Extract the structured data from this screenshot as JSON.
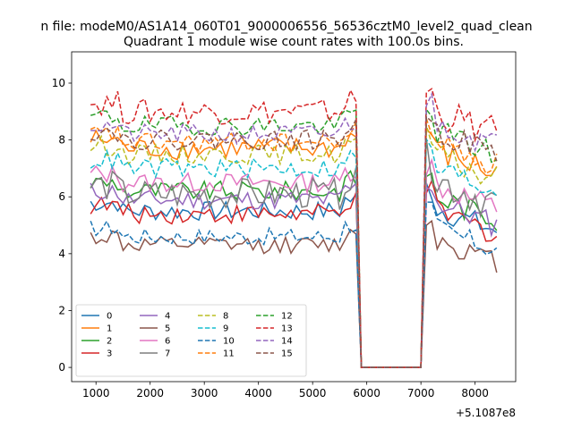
{
  "figure": {
    "suptitle": "n file: modeM0/AS1A14_060T01_9000006556_56536cztM0_level2_quad_clean",
    "background": "#ffffff"
  },
  "chart_data": {
    "type": "line",
    "title": "Quadrant 1 module wise count rates with 100.0s bins.",
    "xlabel": "",
    "ylabel": "",
    "x_offset_label": "+5.1087e8",
    "xlim": [
      550,
      8750
    ],
    "ylim": [
      -0.5,
      11.1
    ],
    "x_ticks": [
      1000,
      2000,
      3000,
      4000,
      5000,
      6000,
      7000,
      8000
    ],
    "x_tick_labels": [
      "1000",
      "2000",
      "3000",
      "4000",
      "5000",
      "6000",
      "7000",
      "8000"
    ],
    "y_ticks": [
      0,
      2,
      4,
      6,
      8,
      10
    ],
    "y_tick_labels": [
      "0",
      "2",
      "4",
      "6",
      "8",
      "10"
    ],
    "grid": false,
    "legend_placement": "lower-left",
    "legend_columns": 4,
    "bin_seconds": 100,
    "x": [
      900,
      1000,
      1100,
      1200,
      1300,
      1400,
      1500,
      1600,
      1700,
      1800,
      1900,
      2000,
      2100,
      2200,
      2300,
      2400,
      2500,
      2600,
      2700,
      2800,
      2900,
      3000,
      3100,
      3200,
      3300,
      3400,
      3500,
      3600,
      3700,
      3800,
      3900,
      4000,
      4100,
      4200,
      4300,
      4400,
      4500,
      4600,
      4700,
      4800,
      4900,
      5000,
      5100,
      5200,
      5300,
      5400,
      5500,
      5600,
      5700,
      5800,
      5900,
      6000,
      6100,
      6200,
      6300,
      6400,
      6500,
      6600,
      6700,
      6800,
      6900,
      7000,
      7100,
      7200,
      7300,
      7400,
      7500,
      7600,
      7700,
      7800,
      7900,
      8000,
      8100,
      8200,
      8300,
      8400
    ],
    "gap_range": [
      5900,
      7000
    ],
    "series": [
      {
        "name": "0",
        "color": "#1f77b4",
        "dash": "solid",
        "base": 5.5,
        "amp": 0.35,
        "after": 5.6
      },
      {
        "name": "1",
        "color": "#ff7f0e",
        "dash": "solid",
        "base": 7.7,
        "amp": 0.4,
        "after": 7.6
      },
      {
        "name": "2",
        "color": "#2ca02c",
        "dash": "solid",
        "base": 6.2,
        "amp": 0.35,
        "after": 6.0
      },
      {
        "name": "3",
        "color": "#d62728",
        "dash": "solid",
        "base": 5.4,
        "amp": 0.35,
        "after": 5.5
      },
      {
        "name": "4",
        "color": "#9467bd",
        "dash": "solid",
        "base": 5.9,
        "amp": 0.35,
        "after": 5.8
      },
      {
        "name": "5",
        "color": "#8c564b",
        "dash": "solid",
        "base": 4.3,
        "amp": 0.3,
        "after": 4.5
      },
      {
        "name": "6",
        "color": "#e377c2",
        "dash": "solid",
        "base": 6.5,
        "amp": 0.35,
        "after": 6.4
      },
      {
        "name": "7",
        "color": "#7f7f7f",
        "dash": "solid",
        "base": 6.1,
        "amp": 0.55,
        "after": 6.6
      },
      {
        "name": "8",
        "color": "#bcbd22",
        "dash": "dashed",
        "base": 7.5,
        "amp": 0.35,
        "after": 7.4
      },
      {
        "name": "9",
        "color": "#17becf",
        "dash": "dashed",
        "base": 7.0,
        "amp": 0.35,
        "after": 7.0
      },
      {
        "name": "10",
        "color": "#1f77b4",
        "dash": "dashed",
        "base": 4.6,
        "amp": 0.3,
        "after": 4.9
      },
      {
        "name": "11",
        "color": "#ff7f0e",
        "dash": "dashed",
        "base": 7.9,
        "amp": 0.35,
        "after": 7.9
      },
      {
        "name": "12",
        "color": "#2ca02c",
        "dash": "dashed",
        "base": 8.5,
        "amp": 0.35,
        "after": 8.3
      },
      {
        "name": "13",
        "color": "#d62728",
        "dash": "dashed",
        "base": 9.0,
        "amp": 0.45,
        "after": 9.0
      },
      {
        "name": "14",
        "color": "#9467bd",
        "dash": "dashed",
        "base": 8.2,
        "amp": 0.35,
        "after": 8.6
      },
      {
        "name": "15",
        "color": "#8c564b",
        "dash": "dashed",
        "base": 8.0,
        "amp": 0.35,
        "after": 8.3
      }
    ]
  }
}
